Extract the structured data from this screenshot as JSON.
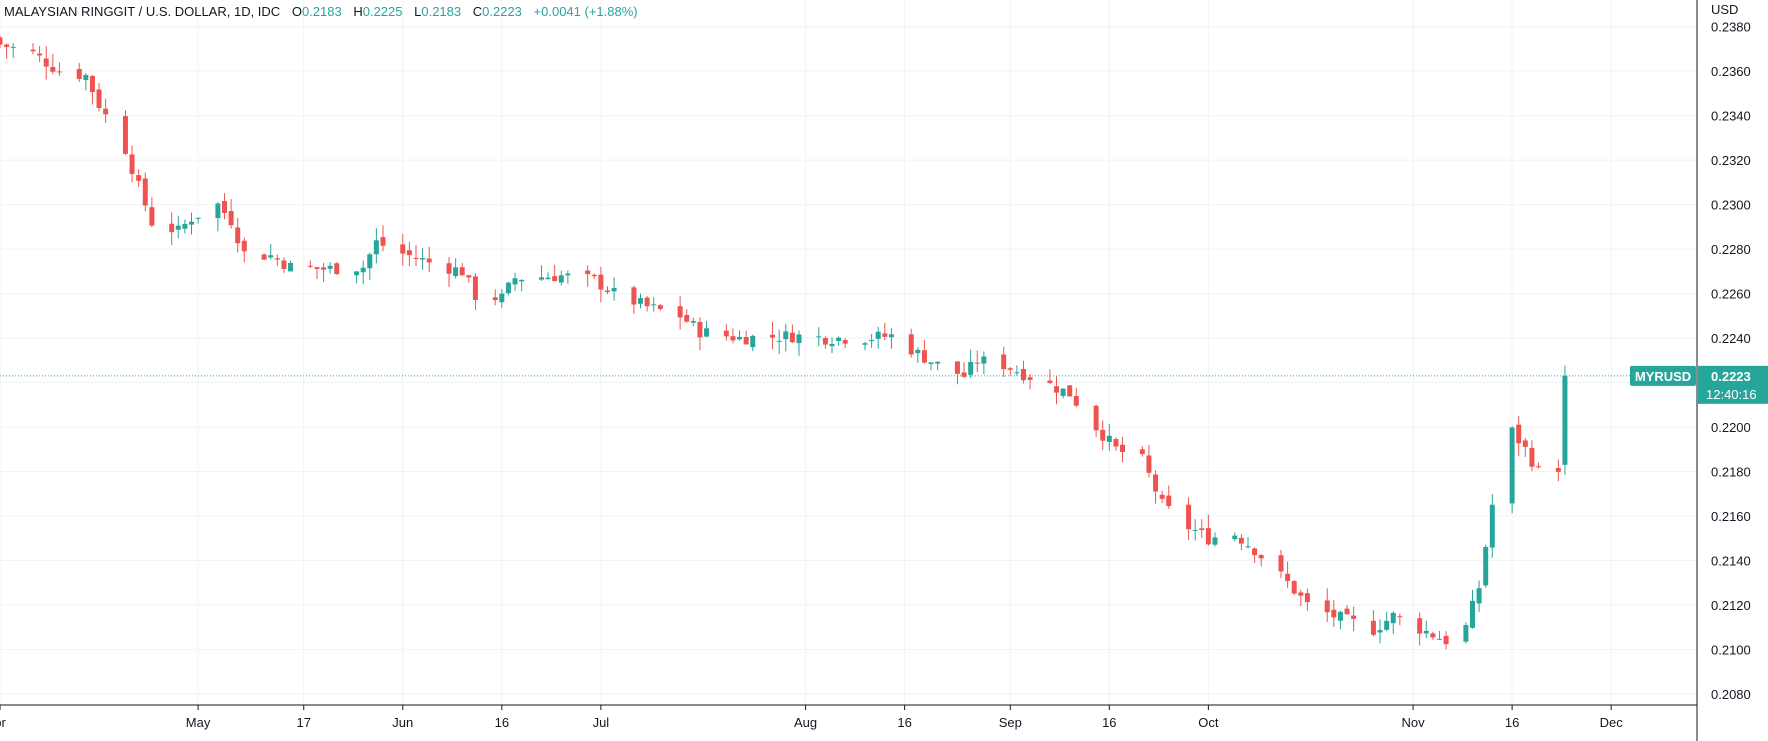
{
  "header": {
    "symbol": "MALAYSIAN RINGGIT / U.S. DOLLAR, 1D, IDC",
    "open_label": "O",
    "open": "0.2183",
    "high_label": "H",
    "high": "0.2225",
    "low_label": "L",
    "low": "0.2183",
    "close_label": "C",
    "close": "0.2223",
    "change": "+0.0041 (+1.88%)"
  },
  "price_axis": {
    "unit": "USD"
  },
  "last_price": {
    "ticker": "MYRUSD",
    "price": "0.2223",
    "countdown": "12:40:16"
  },
  "colors": {
    "up": "#26a69a",
    "down": "#ef5350",
    "grid": "#f0f3fa",
    "axis": "#131722"
  },
  "chart_data": {
    "type": "candlestick",
    "ylim": [
      0.2075,
      0.2392
    ],
    "yticks": [
      0.208,
      0.21,
      0.212,
      0.214,
      0.216,
      0.218,
      0.22,
      0.222,
      0.224,
      0.226,
      0.228,
      0.23,
      0.232,
      0.234,
      0.236,
      0.238
    ],
    "xticks": [
      {
        "label": "pr",
        "date": "2020-04-01"
      },
      {
        "label": "May",
        "date": "2020-05-01"
      },
      {
        "label": "17",
        "date": "2020-05-17"
      },
      {
        "label": "Jun",
        "date": "2020-06-01"
      },
      {
        "label": "16",
        "date": "2020-06-16"
      },
      {
        "label": "Jul",
        "date": "2020-07-01"
      },
      {
        "label": "Aug",
        "date": "2020-08-01"
      },
      {
        "label": "16",
        "date": "2020-08-16"
      },
      {
        "label": "Sep",
        "date": "2020-09-01"
      },
      {
        "label": "16",
        "date": "2020-09-16"
      },
      {
        "label": "Oct",
        "date": "2020-10-01"
      },
      {
        "label": "Nov",
        "date": "2020-11-01"
      },
      {
        "label": "16",
        "date": "2020-11-16"
      },
      {
        "label": "Dec",
        "date": "2020-12-01"
      }
    ],
    "x_start": "2020-04-01",
    "x_end": "2020-12-14",
    "close_anchors": [
      [
        "2020-04-01",
        0.2372
      ],
      [
        "2020-04-06",
        0.2368
      ],
      [
        "2020-04-10",
        0.236
      ],
      [
        "2020-04-14",
        0.2358
      ],
      [
        "2020-04-16",
        0.2345
      ],
      [
        "2020-04-20",
        0.2325
      ],
      [
        "2020-04-22",
        0.2308
      ],
      [
        "2020-04-24",
        0.2292
      ],
      [
        "2020-04-28",
        0.2288
      ],
      [
        "2020-04-30",
        0.2294
      ],
      [
        "2020-05-04",
        0.23
      ],
      [
        "2020-05-06",
        0.2293
      ],
      [
        "2020-05-08",
        0.2278
      ],
      [
        "2020-05-12",
        0.2277
      ],
      [
        "2020-05-15",
        0.2272
      ],
      [
        "2020-05-20",
        0.2271
      ],
      [
        "2020-05-26",
        0.2272
      ],
      [
        "2020-05-28",
        0.2283
      ],
      [
        "2020-06-01",
        0.2278
      ],
      [
        "2020-06-05",
        0.2274
      ],
      [
        "2020-06-10",
        0.227
      ],
      [
        "2020-06-12",
        0.2259
      ],
      [
        "2020-06-16",
        0.2258
      ],
      [
        "2020-06-18",
        0.2267
      ],
      [
        "2020-06-25",
        0.2268
      ],
      [
        "2020-06-30",
        0.2266
      ],
      [
        "2020-07-03",
        0.226
      ],
      [
        "2020-07-08",
        0.2254
      ],
      [
        "2020-07-13",
        0.225
      ],
      [
        "2020-07-16",
        0.2243
      ],
      [
        "2020-07-22",
        0.224
      ],
      [
        "2020-07-30",
        0.2241
      ],
      [
        "2020-08-04",
        0.224
      ],
      [
        "2020-08-10",
        0.224
      ],
      [
        "2020-08-14",
        0.2241
      ],
      [
        "2020-08-18",
        0.2233
      ],
      [
        "2020-08-21",
        0.2228
      ],
      [
        "2020-08-25",
        0.2223
      ],
      [
        "2020-08-27",
        0.223
      ],
      [
        "2020-08-31",
        0.2228
      ],
      [
        "2020-09-03",
        0.2224
      ],
      [
        "2020-09-07",
        0.2219
      ],
      [
        "2020-09-10",
        0.2215
      ],
      [
        "2020-09-14",
        0.22
      ],
      [
        "2020-09-17",
        0.219
      ],
      [
        "2020-09-21",
        0.2185
      ],
      [
        "2020-09-24",
        0.2165
      ],
      [
        "2020-09-28",
        0.2155
      ],
      [
        "2020-10-01",
        0.215
      ],
      [
        "2020-10-05",
        0.2152
      ],
      [
        "2020-10-08",
        0.2145
      ],
      [
        "2020-10-13",
        0.213
      ],
      [
        "2020-10-16",
        0.212
      ],
      [
        "2020-10-20",
        0.2115
      ],
      [
        "2020-10-26",
        0.2109
      ],
      [
        "2020-10-29",
        0.2115
      ],
      [
        "2020-11-03",
        0.2108
      ],
      [
        "2020-11-06",
        0.2104
      ],
      [
        "2020-11-09",
        0.211
      ],
      [
        "2020-11-11",
        0.2128
      ],
      [
        "2020-11-13",
        0.2165
      ],
      [
        "2020-11-16",
        0.2198
      ],
      [
        "2020-11-18",
        0.219
      ],
      [
        "2020-11-20",
        0.218
      ],
      [
        "2020-11-23",
        0.2182
      ],
      [
        "2020-11-24",
        0.2223
      ]
    ]
  }
}
